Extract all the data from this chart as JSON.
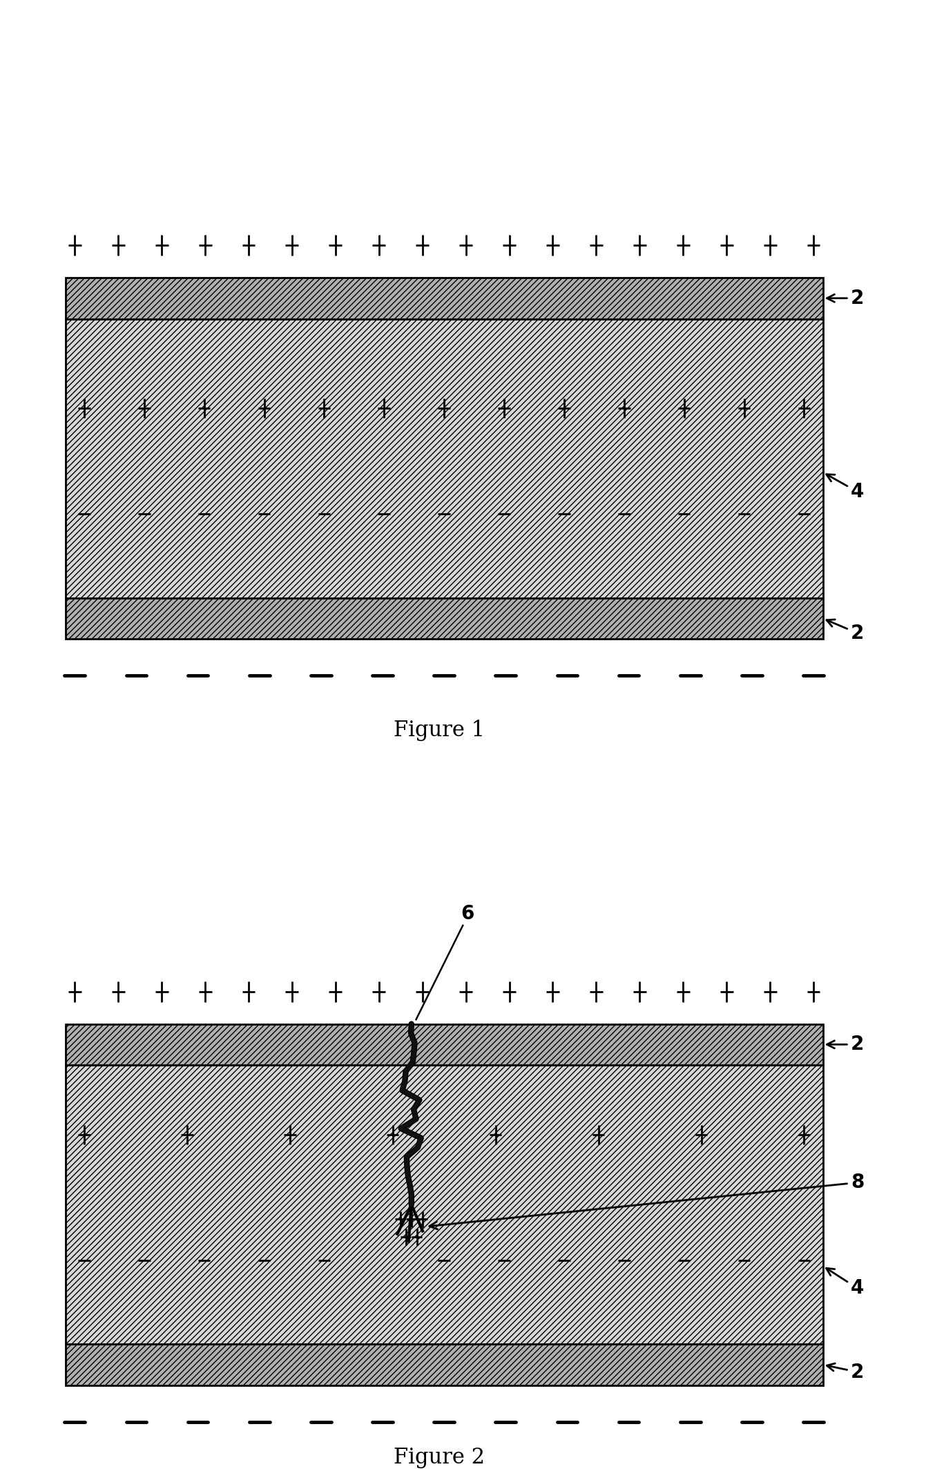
{
  "fig_width": 13.54,
  "fig_height": 21.27,
  "bg_color": "#ffffff",
  "fig1_title": "Figure 1",
  "fig2_title": "Figure 2"
}
